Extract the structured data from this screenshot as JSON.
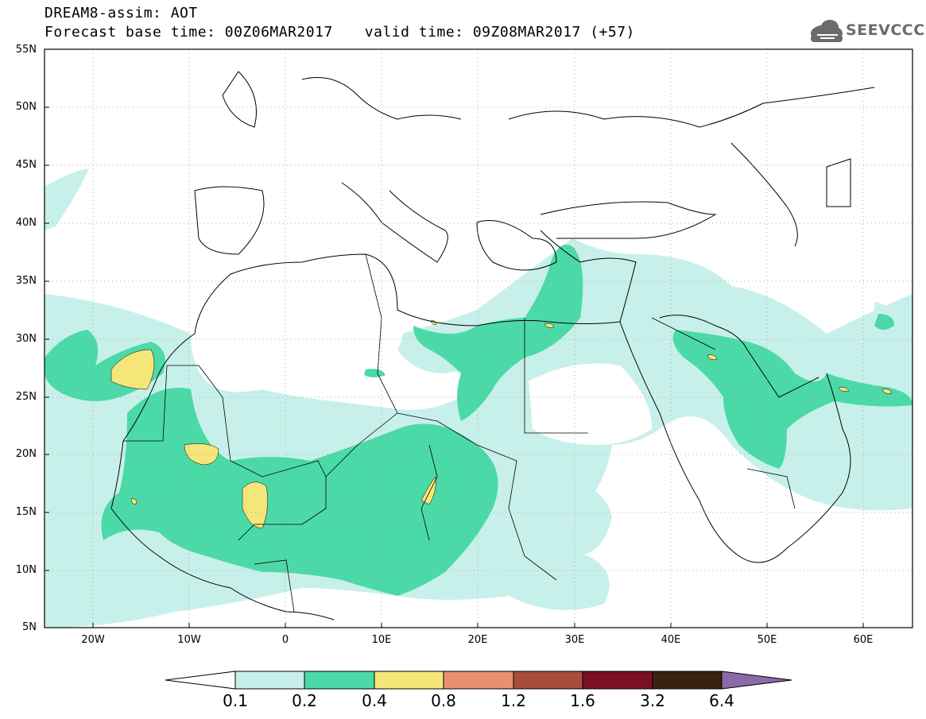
{
  "header": {
    "title": "DREAM8-assim: AOT",
    "base_time": "Forecast base time: 00Z06MAR2017",
    "valid_time": "valid time: 09Z08MAR2017 (+57)",
    "logo_text": "SEEVCCC"
  },
  "map": {
    "lat_labels": [
      "55N",
      "50N",
      "45N",
      "40N",
      "35N",
      "30N",
      "25N",
      "20N",
      "15N",
      "10N",
      "5N"
    ],
    "lon_labels": [
      "20W",
      "10W",
      "0",
      "10E",
      "20E",
      "30E",
      "40E",
      "50E",
      "60E"
    ]
  },
  "colorbar": {
    "labels": [
      "0.1",
      "0.2",
      "0.4",
      "0.8",
      "1.2",
      "1.6",
      "3.2",
      "6.4"
    ],
    "colors": [
      "#c8f0ea",
      "#4cd9a8",
      "#f5e679",
      "#e89170",
      "#a94c3c",
      "#7c0f24",
      "#3b2210",
      "#8b6aa8"
    ]
  }
}
